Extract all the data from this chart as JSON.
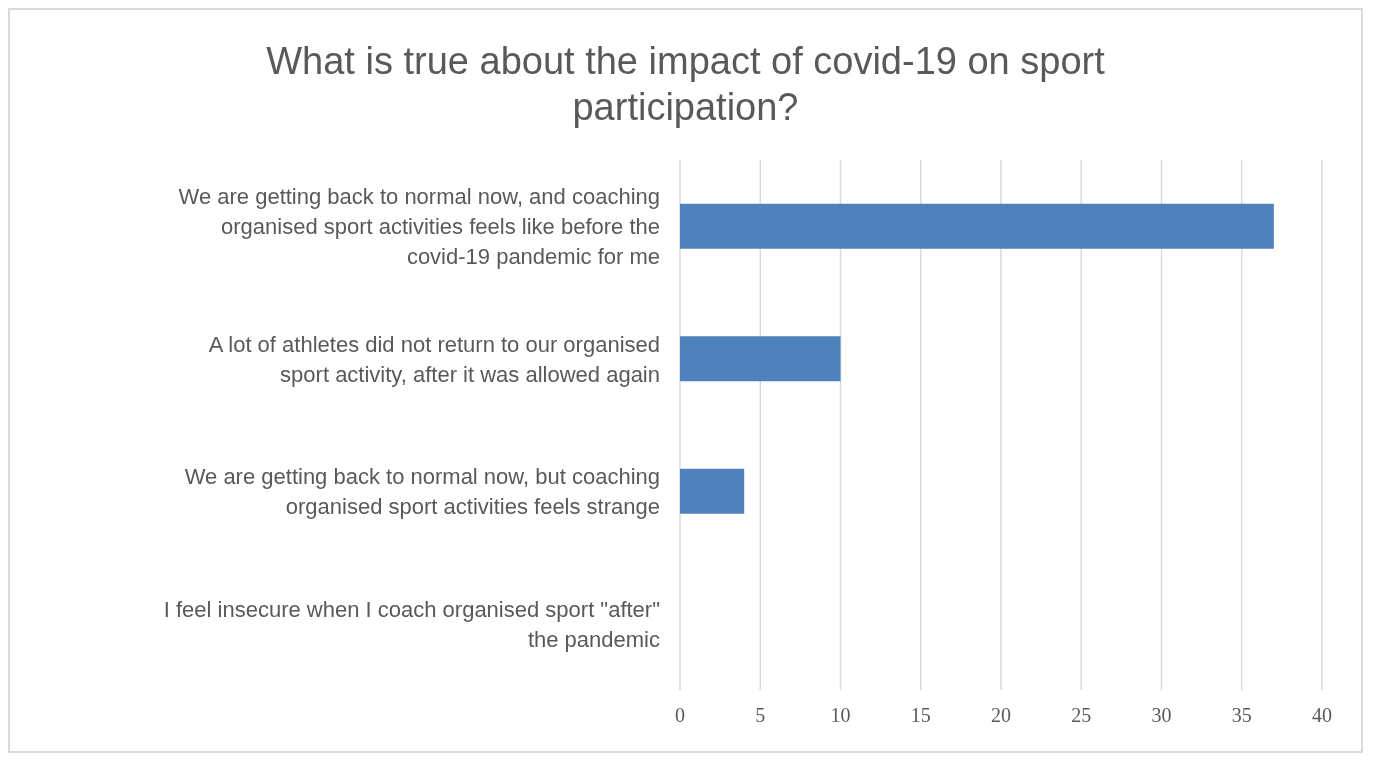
{
  "chart_data": {
    "type": "bar",
    "orientation": "horizontal",
    "title": "What is true about the impact of covid-19 on sport participation?",
    "categories": [
      "We are getting back to normal now, and coaching organised sport activities feels like before the covid-19 pandemic for me",
      "A lot of athletes did not return to our organised sport activity, after it was allowed again",
      "We are getting back to normal now, but coaching organised sport activities feels strange",
      "I feel insecure when I coach organised sport \"after\" the pandemic"
    ],
    "values": [
      37,
      10,
      4,
      0
    ],
    "color": "#4f81bd",
    "xlim": [
      0,
      40
    ],
    "xticks": [
      0,
      5,
      10,
      15,
      20,
      25,
      30,
      35,
      40
    ],
    "grid": "x"
  }
}
